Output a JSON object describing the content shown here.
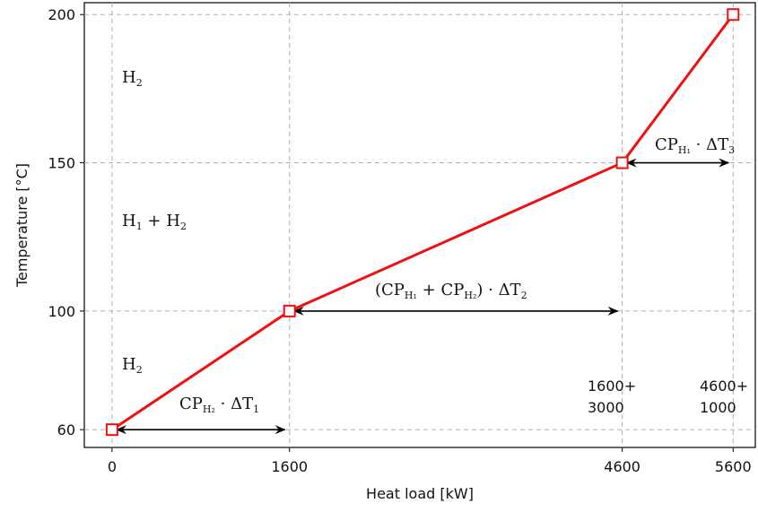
{
  "chart_data": {
    "type": "line",
    "xlabel": "Heat load [kW]",
    "ylabel": "Temperature [°C]",
    "xlim": [
      -250,
      5800
    ],
    "ylim": [
      54,
      204
    ],
    "grid": true,
    "x_ticks": [
      0,
      1600,
      4600,
      5600
    ],
    "y_ticks": [
      60,
      100,
      150,
      200
    ],
    "series": [
      {
        "color": "#ee1111",
        "points": [
          {
            "x": 0,
            "y": 60
          },
          {
            "x": 1600,
            "y": 100
          },
          {
            "x": 4600,
            "y": 150
          },
          {
            "x": 5600,
            "y": 200
          }
        ]
      }
    ],
    "arrows": [
      {
        "x1": 0,
        "x2": 1600,
        "y": 60
      },
      {
        "x1": 1600,
        "x2": 4600,
        "y": 100
      },
      {
        "x1": 4600,
        "x2": 5600,
        "y": 150
      }
    ],
    "annotations": {
      "zone_top": {
        "main": "H",
        "sub": "2"
      },
      "zone_mid": {
        "a": "H",
        "a_sub": "1",
        "plus": " + ",
        "b": "H",
        "b_sub": "2"
      },
      "zone_low": {
        "main": "H",
        "sub": "2"
      },
      "delta1": {
        "cp": "CP",
        "cp_sub": "H₂",
        "dot": " · ",
        "dt": "ΔT",
        "dt_sub": "1"
      },
      "delta2": {
        "open": "(",
        "cp1": "CP",
        "cp1_sub": "H₁",
        "plus": " + ",
        "cp2": "CP",
        "cp2_sub": "H₂",
        "close": ") · ",
        "dt": "ΔT",
        "dt_sub": "2"
      },
      "delta3": {
        "cp": "CP",
        "cp_sub": "H₁",
        "dot": " · ",
        "dt": "ΔT",
        "dt_sub": "3"
      },
      "sum1": {
        "line1": "1600+",
        "line2": "3000"
      },
      "sum2": {
        "line1": "4600+",
        "line2": "1000"
      }
    }
  }
}
